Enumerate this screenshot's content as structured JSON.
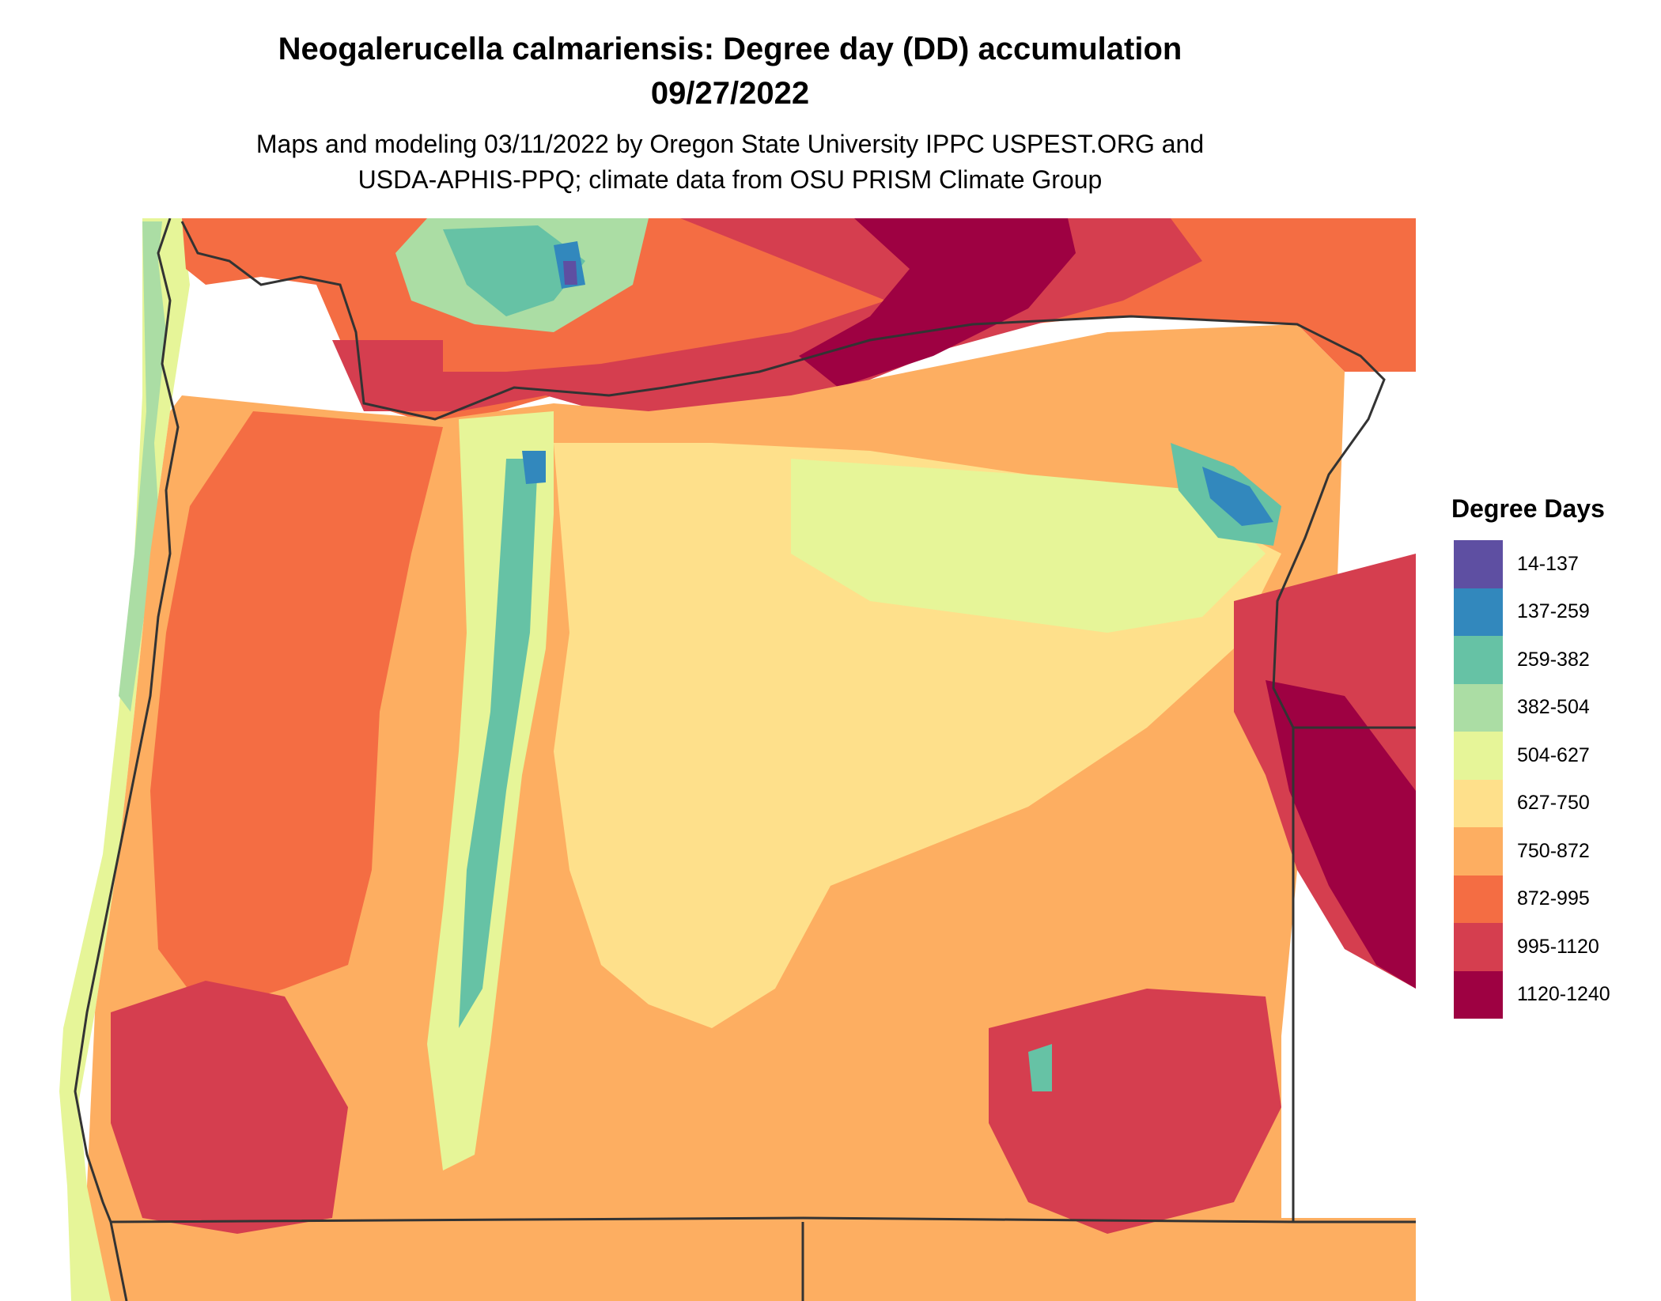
{
  "title_line1": "Neogalerucella calmariensis: Degree day (DD) accumulation",
  "title_line2": "09/27/2022",
  "subtitle_line1": "Maps and modeling 03/11/2022 by Oregon State University IPPC USPEST.ORG and",
  "subtitle_line2": "USDA-APHIS-PPQ; climate data from OSU PRISM Climate Group",
  "legend": {
    "title": "Degree Days",
    "items": [
      {
        "label": "14-137",
        "color": "#5e4fa2"
      },
      {
        "label": "137-259",
        "color": "#3288bd"
      },
      {
        "label": "259-382",
        "color": "#66c2a5"
      },
      {
        "label": "382-504",
        "color": "#abdda4"
      },
      {
        "label": "504-627",
        "color": "#e6f598"
      },
      {
        "label": "627-750",
        "color": "#fee08b"
      },
      {
        "label": "750-872",
        "color": "#fdae61"
      },
      {
        "label": "872-995",
        "color": "#f46d43"
      },
      {
        "label": "995-1120",
        "color": "#d53e4f"
      },
      {
        "label": "1120-1240",
        "color": "#9e0142"
      }
    ]
  }
}
